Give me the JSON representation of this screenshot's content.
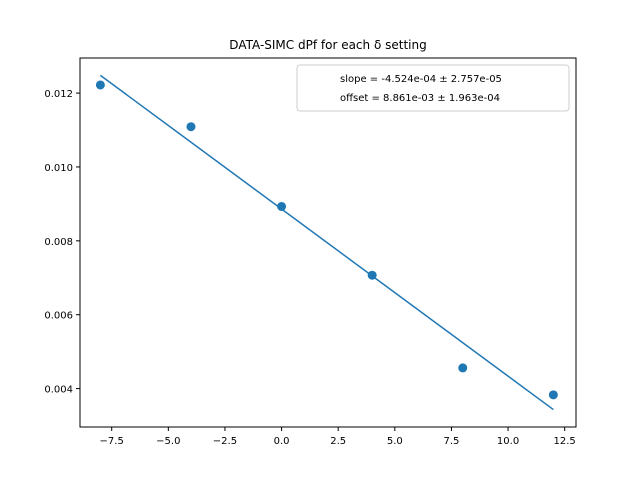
{
  "chart_data": {
    "type": "scatter",
    "title": "DATA-SIMC dPf for each δ setting",
    "xlabel": "",
    "ylabel": "",
    "xlim": [
      -8.9,
      13.0
    ],
    "ylim": [
      0.00296,
      0.01295
    ],
    "x_ticks": [
      -7.5,
      -5.0,
      -2.5,
      0.0,
      2.5,
      5.0,
      7.5,
      10.0,
      12.5
    ],
    "x_tick_labels": [
      "−7.5",
      "−5.0",
      "−2.5",
      "0.0",
      "2.5",
      "5.0",
      "7.5",
      "10.0",
      "12.5"
    ],
    "y_ticks": [
      0.004,
      0.006,
      0.008,
      0.01,
      0.012
    ],
    "y_tick_labels": [
      "0.004",
      "0.006",
      "0.008",
      "0.010",
      "0.012"
    ],
    "color": "#1f77b4",
    "grid": false,
    "legend_position": "top-right",
    "series": [
      {
        "type": "scatter",
        "x": [
          -8,
          -4,
          0,
          4,
          8,
          12
        ],
        "y": [
          0.01222,
          0.01109,
          0.00893,
          0.00707,
          0.00456,
          0.00383
        ]
      },
      {
        "type": "line",
        "x": [
          -8,
          12
        ],
        "y": [
          0.01248,
          0.003432
        ]
      }
    ],
    "legend": [
      "slope = -4.524e-04 ± 2.757e-05",
      "offset = 8.861e-03 ± 1.963e-04"
    ]
  }
}
